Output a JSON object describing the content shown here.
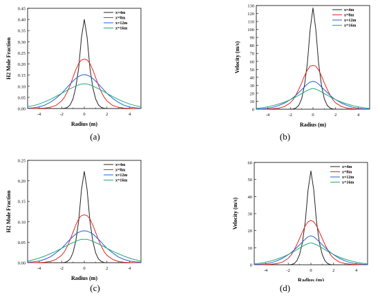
{
  "colors": {
    "x4": "#222222",
    "x8": "#e8251f",
    "x12": "#1f5fd6",
    "x16": "#1fa87a"
  },
  "chart_data": [
    {
      "id": "a",
      "type": "line",
      "caption": "(a)",
      "xlabel": "Radius (m)",
      "ylabel": "H2 Mole Fraction",
      "xlim": [
        -5,
        5
      ],
      "ylim": [
        0,
        0.45
      ],
      "xticks": [
        -4,
        -2,
        0,
        2,
        4
      ],
      "yticks": [
        0.0,
        0.05,
        0.1,
        0.15,
        0.2,
        0.25,
        0.3,
        0.35,
        0.4,
        0.45
      ],
      "ytick_labels": [
        "0.00",
        "0.05",
        "0.10",
        "0.15",
        "0.20",
        "0.25",
        "0.30",
        "0.35",
        "0.40",
        "0.45"
      ],
      "xtick_labels": [
        "-4",
        "-2",
        "0",
        "2",
        "4"
      ],
      "legend": "top-right",
      "x": [
        -5.0,
        -4.5,
        -4.0,
        -3.5,
        -3.0,
        -2.5,
        -2.0,
        -1.75,
        -1.5,
        -1.25,
        -1.0,
        -0.75,
        -0.5,
        -0.25,
        0.0,
        0.25,
        0.5,
        0.75,
        1.0,
        1.25,
        1.5,
        1.75,
        2.0,
        2.5,
        3.0,
        3.5,
        4.0,
        4.5,
        5.0
      ],
      "series": [
        {
          "name": "x=4m",
          "color_key": "x4",
          "values": [
            0,
            0,
            0,
            0,
            0,
            0,
            0,
            0.001,
            0.005,
            0.016,
            0.043,
            0.095,
            0.18,
            0.319,
            0.4,
            0.319,
            0.18,
            0.095,
            0.043,
            0.016,
            0.005,
            0.001,
            0,
            0,
            0,
            0,
            0,
            0,
            0
          ]
        },
        {
          "name": "x=8m",
          "color_key": "x8",
          "values": [
            0,
            0,
            0.001,
            0.002,
            0.006,
            0.014,
            0.034,
            0.051,
            0.075,
            0.104,
            0.139,
            0.174,
            0.202,
            0.218,
            0.222,
            0.218,
            0.202,
            0.174,
            0.139,
            0.104,
            0.075,
            0.051,
            0.034,
            0.014,
            0.006,
            0.002,
            0.001,
            0,
            0
          ]
        },
        {
          "name": "x=12m",
          "color_key": "x12",
          "values": [
            0.001,
            0.003,
            0.007,
            0.015,
            0.028,
            0.046,
            0.068,
            0.082,
            0.096,
            0.11,
            0.123,
            0.135,
            0.144,
            0.15,
            0.152,
            0.15,
            0.144,
            0.135,
            0.123,
            0.11,
            0.096,
            0.082,
            0.068,
            0.046,
            0.028,
            0.015,
            0.007,
            0.003,
            0.001
          ]
        },
        {
          "name": "x=16m",
          "color_key": "x16",
          "values": [
            0.008,
            0.013,
            0.02,
            0.03,
            0.041,
            0.054,
            0.068,
            0.075,
            0.082,
            0.089,
            0.095,
            0.101,
            0.106,
            0.11,
            0.111,
            0.11,
            0.106,
            0.101,
            0.095,
            0.089,
            0.082,
            0.075,
            0.068,
            0.054,
            0.041,
            0.03,
            0.02,
            0.013,
            0.008
          ]
        }
      ]
    },
    {
      "id": "b",
      "type": "line",
      "caption": "(b)",
      "xlabel": "Radius (m)",
      "ylabel": "Velocity (m/s)",
      "xlim": [
        -5,
        5
      ],
      "ylim": [
        0,
        130
      ],
      "xticks": [
        -4,
        -2,
        0,
        2,
        4
      ],
      "yticks": [
        0,
        10,
        20,
        30,
        40,
        50,
        60,
        70,
        80,
        90,
        100,
        110,
        120,
        130
      ],
      "ytick_labels": [
        "0",
        "10",
        "20",
        "30",
        "40",
        "50",
        "60",
        "70",
        "80",
        "90",
        "100",
        "110",
        "120",
        "130"
      ],
      "xtick_labels": [
        "-4",
        "-2",
        "0",
        "2",
        "4"
      ],
      "legend": "top-right",
      "x": [
        -5.0,
        -4.5,
        -4.0,
        -3.5,
        -3.0,
        -2.5,
        -2.0,
        -1.75,
        -1.5,
        -1.25,
        -1.0,
        -0.75,
        -0.5,
        -0.25,
        0.0,
        0.25,
        0.5,
        0.75,
        1.0,
        1.25,
        1.5,
        1.75,
        2.0,
        2.5,
        3.0,
        3.5,
        4.0,
        4.5,
        5.0
      ],
      "series": [
        {
          "name": "x=4m",
          "color_key": "x4",
          "values": [
            0,
            0,
            0,
            0,
            0,
            0,
            0,
            0.3,
            1.5,
            5,
            13,
            30,
            57,
            100,
            127,
            100,
            57,
            30,
            13,
            5,
            1.5,
            0.3,
            0,
            0,
            0,
            0,
            0,
            0,
            0
          ]
        },
        {
          "name": "x=8m",
          "color_key": "x8",
          "values": [
            0,
            0,
            0.2,
            0.6,
            1.5,
            3.4,
            8,
            12,
            18,
            25,
            33,
            42,
            49,
            54,
            55,
            54,
            49,
            42,
            33,
            25,
            18,
            12,
            8,
            3.4,
            1.5,
            0.6,
            0.2,
            0,
            0
          ]
        },
        {
          "name": "x=12m",
          "color_key": "x12",
          "values": [
            0.2,
            0.5,
            1.2,
            2.5,
            4.7,
            7.8,
            12,
            14.5,
            17.5,
            21,
            24.5,
            28,
            31.5,
            34,
            35,
            34,
            31.5,
            28,
            24.5,
            21,
            17.5,
            14.5,
            12,
            7.8,
            4.7,
            2.5,
            1.2,
            0.5,
            0.2
          ]
        },
        {
          "name": "x=16m",
          "color_key": "x16",
          "values": [
            1.0,
            1.8,
            3.0,
            4.6,
            6.6,
            9.0,
            12,
            13.8,
            15.6,
            17.6,
            19.6,
            21.6,
            23.6,
            25.2,
            26,
            25.2,
            23.6,
            21.6,
            19.6,
            17.6,
            15.6,
            13.8,
            12,
            9.0,
            6.6,
            4.6,
            3.0,
            1.8,
            1.0
          ]
        }
      ]
    },
    {
      "id": "c",
      "type": "line",
      "caption": "(c)",
      "xlabel": "Radius (m)",
      "ylabel": "H2 Mole Fraction",
      "xlim": [
        -5,
        5
      ],
      "ylim": [
        0,
        0.25
      ],
      "xticks": [
        -4,
        -2,
        0,
        2,
        4
      ],
      "yticks": [
        0.0,
        0.05,
        0.1,
        0.15,
        0.2,
        0.25
      ],
      "ytick_labels": [
        "0.00",
        "0.05",
        "0.10",
        "0.15",
        "0.20",
        "0.25"
      ],
      "xtick_labels": [
        "-4",
        "-2",
        "0",
        "2",
        "4"
      ],
      "legend": "top-right",
      "x": [
        -5.0,
        -4.5,
        -4.0,
        -3.5,
        -3.0,
        -2.5,
        -2.0,
        -1.75,
        -1.5,
        -1.25,
        -1.0,
        -0.75,
        -0.5,
        -0.25,
        0.0,
        0.25,
        0.5,
        0.75,
        1.0,
        1.25,
        1.5,
        1.75,
        2.0,
        2.5,
        3.0,
        3.5,
        4.0,
        4.5,
        5.0
      ],
      "series": [
        {
          "name": "x=4m",
          "color_key": "x4",
          "values": [
            0,
            0,
            0,
            0,
            0,
            0,
            0,
            0.0005,
            0.003,
            0.009,
            0.024,
            0.053,
            0.101,
            0.178,
            0.223,
            0.178,
            0.101,
            0.053,
            0.024,
            0.009,
            0.003,
            0.0005,
            0,
            0,
            0,
            0,
            0,
            0,
            0
          ]
        },
        {
          "name": "x=8m",
          "color_key": "x8",
          "values": [
            0,
            0,
            0.0005,
            0.001,
            0.003,
            0.008,
            0.018,
            0.027,
            0.04,
            0.056,
            0.074,
            0.092,
            0.107,
            0.115,
            0.117,
            0.115,
            0.107,
            0.092,
            0.074,
            0.056,
            0.04,
            0.027,
            0.018,
            0.008,
            0.003,
            0.001,
            0.0005,
            0,
            0
          ]
        },
        {
          "name": "x=12m",
          "color_key": "x12",
          "values": [
            0.001,
            0.002,
            0.004,
            0.008,
            0.014,
            0.024,
            0.035,
            0.042,
            0.05,
            0.057,
            0.064,
            0.07,
            0.074,
            0.077,
            0.078,
            0.077,
            0.074,
            0.07,
            0.064,
            0.057,
            0.05,
            0.042,
            0.035,
            0.024,
            0.014,
            0.008,
            0.004,
            0.002,
            0.001
          ]
        },
        {
          "name": "x=16m",
          "color_key": "x16",
          "values": [
            0.004,
            0.007,
            0.011,
            0.016,
            0.022,
            0.028,
            0.035,
            0.039,
            0.042,
            0.046,
            0.049,
            0.052,
            0.055,
            0.057,
            0.057,
            0.057,
            0.055,
            0.052,
            0.049,
            0.046,
            0.042,
            0.039,
            0.035,
            0.028,
            0.022,
            0.016,
            0.011,
            0.007,
            0.004
          ]
        }
      ]
    },
    {
      "id": "d",
      "type": "line",
      "caption": "(d)",
      "xlabel": "Radius (m)",
      "ylabel": "Velocity (m/s)",
      "xlim": [
        -5,
        5
      ],
      "ylim": [
        0,
        60
      ],
      "xticks": [
        -4,
        -2,
        0,
        2,
        4
      ],
      "yticks": [
        0,
        10,
        20,
        30,
        40,
        50,
        60
      ],
      "ytick_labels": [
        "0",
        "10",
        "20",
        "30",
        "40",
        "50",
        "60"
      ],
      "xtick_labels": [
        "-4",
        "-2",
        "0",
        "2",
        "4"
      ],
      "legend": "top-right",
      "x": [
        -5.0,
        -4.5,
        -4.0,
        -3.5,
        -3.0,
        -2.5,
        -2.0,
        -1.75,
        -1.5,
        -1.25,
        -1.0,
        -0.75,
        -0.5,
        -0.25,
        0.0,
        0.25,
        0.5,
        0.75,
        1.0,
        1.25,
        1.5,
        1.75,
        2.0,
        2.5,
        3.0,
        3.5,
        4.0,
        4.5,
        5.0
      ],
      "series": [
        {
          "name": "x=4m",
          "color_key": "x4",
          "values": [
            0,
            0,
            0,
            0,
            0,
            0,
            0,
            0.1,
            0.6,
            2.2,
            6,
            13,
            25,
            44,
            55,
            44,
            25,
            13,
            6,
            2.2,
            0.6,
            0.1,
            0,
            0,
            0,
            0,
            0,
            0,
            0
          ]
        },
        {
          "name": "x=8m",
          "color_key": "x8",
          "values": [
            0,
            0,
            0.1,
            0.3,
            0.7,
            1.6,
            3.8,
            5.7,
            8.4,
            11.7,
            15.4,
            19.2,
            22.8,
            25.2,
            26,
            25.2,
            22.8,
            19.2,
            15.4,
            11.7,
            8.4,
            5.7,
            3.8,
            1.6,
            0.7,
            0.3,
            0.1,
            0,
            0
          ]
        },
        {
          "name": "x=12m",
          "color_key": "x12",
          "values": [
            0.1,
            0.3,
            0.6,
            1.2,
            2.3,
            3.8,
            5.9,
            7.1,
            8.5,
            10.1,
            11.7,
            13.4,
            15.0,
            16.4,
            17,
            16.4,
            15.0,
            13.4,
            11.7,
            10.1,
            8.5,
            7.1,
            5.9,
            3.8,
            2.3,
            1.2,
            0.6,
            0.3,
            0.1
          ]
        },
        {
          "name": "x=16m",
          "color_key": "x16",
          "values": [
            0.5,
            0.9,
            1.5,
            2.3,
            3.3,
            4.5,
            6.0,
            6.9,
            7.8,
            8.8,
            9.8,
            10.8,
            11.7,
            12.4,
            12.8,
            12.4,
            11.7,
            10.8,
            9.8,
            8.8,
            7.8,
            6.9,
            6.0,
            4.5,
            3.3,
            2.3,
            1.5,
            0.9,
            0.5
          ]
        }
      ]
    }
  ]
}
